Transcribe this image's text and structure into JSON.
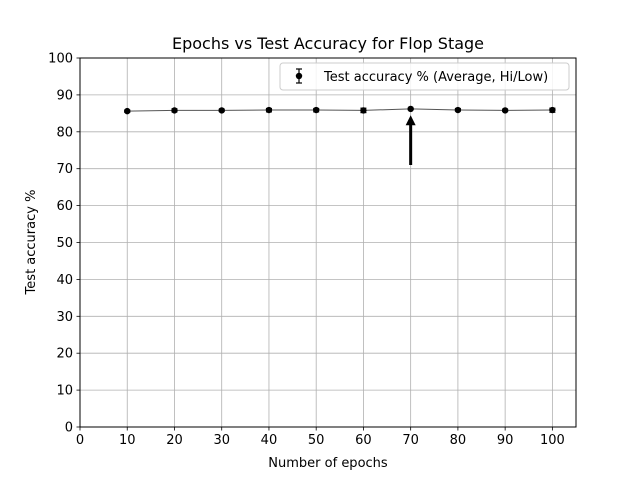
{
  "chart_data": {
    "type": "scatter",
    "title": "Epochs vs Test Accuracy for Flop Stage",
    "xlabel": "Number of epochs",
    "ylabel": "Test accuracy %",
    "xlim": [
      0,
      105
    ],
    "ylim": [
      0,
      100
    ],
    "x_ticks": [
      "0",
      "10",
      "20",
      "30",
      "40",
      "50",
      "60",
      "70",
      "80",
      "90",
      "100"
    ],
    "y_ticks": [
      "0",
      "10",
      "20",
      "30",
      "40",
      "50",
      "60",
      "70",
      "80",
      "90",
      "100"
    ],
    "grid": true,
    "legend_position": "top-right",
    "series": [
      {
        "name": "Test accuracy % (Average, Hi/Low)",
        "color": "#000000",
        "line_color": "#555555",
        "marker": "circle",
        "error_bars": true,
        "points": [
          {
            "x": 10,
            "y": 85.6,
            "low": 85.3,
            "high": 85.9
          },
          {
            "x": 20,
            "y": 85.8,
            "low": 85.4,
            "high": 86.2
          },
          {
            "x": 30,
            "y": 85.8,
            "low": 85.5,
            "high": 86.1
          },
          {
            "x": 40,
            "y": 85.9,
            "low": 85.4,
            "high": 86.3
          },
          {
            "x": 50,
            "y": 85.9,
            "low": 85.4,
            "high": 86.3
          },
          {
            "x": 60,
            "y": 85.8,
            "low": 85.2,
            "high": 86.4
          },
          {
            "x": 70,
            "y": 86.2,
            "low": 86.0,
            "high": 86.4
          },
          {
            "x": 80,
            "y": 85.9,
            "low": 85.6,
            "high": 86.3
          },
          {
            "x": 90,
            "y": 85.8,
            "low": 85.5,
            "high": 86.1
          },
          {
            "x": 100,
            "y": 85.9,
            "low": 85.3,
            "high": 86.4
          }
        ]
      }
    ],
    "annotations": [
      {
        "type": "arrow",
        "x": 70,
        "y_from": 71,
        "y_to": 84.5,
        "color": "#000000"
      }
    ]
  }
}
